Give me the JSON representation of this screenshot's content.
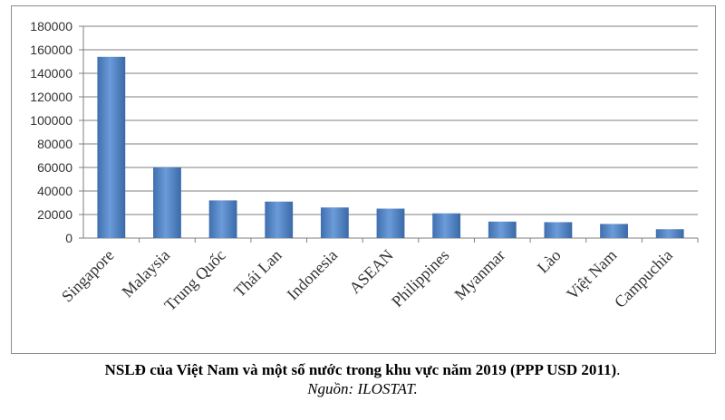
{
  "chart_data": {
    "type": "bar",
    "categories": [
      "Singapore",
      "Malaysia",
      "Trung Quốc",
      "Thái Lan",
      "Indonesia",
      "ASEAN",
      "Philippines",
      "Myanmar",
      "Lào",
      "Việt Nam",
      "Campuchia"
    ],
    "values": [
      154000,
      60000,
      32000,
      31000,
      26000,
      25000,
      21000,
      14000,
      13500,
      12000,
      7500
    ],
    "ylim": [
      0,
      180000
    ],
    "yticks": [
      0,
      20000,
      40000,
      60000,
      80000,
      100000,
      120000,
      140000,
      160000,
      180000
    ],
    "grid": true,
    "bar_color": "#4a7ebb"
  },
  "caption": {
    "title": "NSLĐ của Việt Nam và một số nước trong khu vực năm 2019 (PPP USD 2011)",
    "title_end": ".",
    "source": "Nguồn: ILOSTAT."
  }
}
